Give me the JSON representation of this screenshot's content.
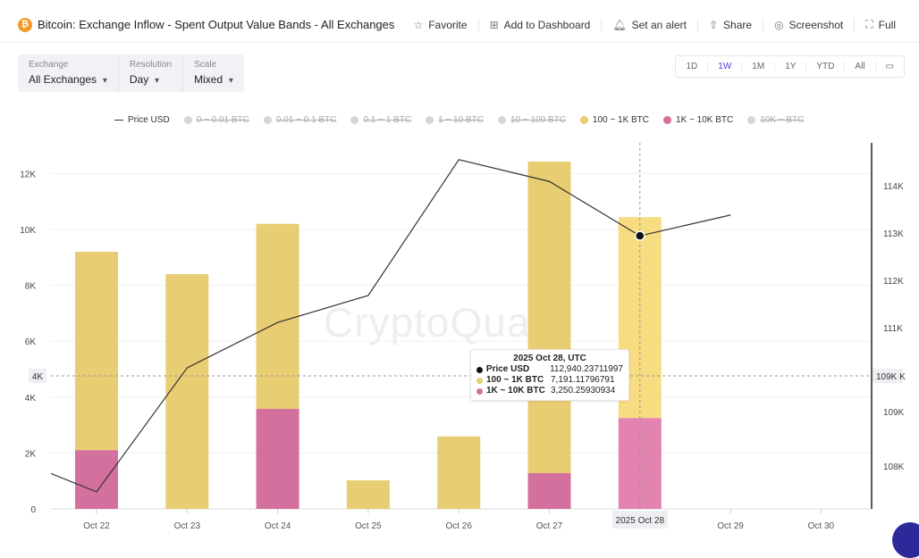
{
  "header": {
    "title": "Bitcoin: Exchange Inflow - Spent Output Value Bands - All Exchanges",
    "actions": [
      {
        "label": "Favorite",
        "icon": "star-icon"
      },
      {
        "label": "Add to Dashboard",
        "icon": "dashboard-add-icon"
      },
      {
        "label": "Set an alert",
        "icon": "bell-icon"
      },
      {
        "label": "Share",
        "icon": "share-icon"
      },
      {
        "label": "Screenshot",
        "icon": "camera-icon"
      },
      {
        "label": "Full",
        "icon": "fullscreen-icon"
      }
    ]
  },
  "controls": [
    {
      "label": "Exchange",
      "value": "All Exchanges"
    },
    {
      "label": "Resolution",
      "value": "Day"
    },
    {
      "label": "Scale",
      "value": "Mixed"
    }
  ],
  "ranges": [
    "1D",
    "1W",
    "1M",
    "1Y",
    "YTD",
    "All"
  ],
  "active_range": "1W",
  "watermark": "CryptoQuant",
  "chart_data": {
    "type": "bar",
    "legend": [
      {
        "name": "Price USD",
        "type": "line",
        "active": true
      },
      {
        "name": "0 ~ 0.01 BTC",
        "active": false
      },
      {
        "name": "0.01 ~ 0.1 BTC",
        "active": false
      },
      {
        "name": "0.1 ~ 1 BTC",
        "active": false
      },
      {
        "name": "1 ~ 10 BTC",
        "active": false
      },
      {
        "name": "10 ~ 100 BTC",
        "active": false
      },
      {
        "name": "100 ~ 1K BTC",
        "active": true,
        "color": "#e8cd72"
      },
      {
        "name": "1K ~ 10K BTC",
        "active": true,
        "color": "#d4709e"
      },
      {
        "name": "10K ~ BTC",
        "active": false
      }
    ],
    "categories": [
      "Oct 22",
      "Oct 23",
      "Oct 24",
      "Oct 25",
      "Oct 26",
      "Oct 27",
      "Oct 28",
      "Oct 29",
      "Oct 30"
    ],
    "series": [
      {
        "name": "100 ~ 1K BTC",
        "color": "#e8cd72",
        "values": [
          7100,
          8400,
          6620,
          1020,
          2590,
          11150,
          7191.11796791,
          null,
          null
        ]
      },
      {
        "name": "1K ~ 10K BTC",
        "color": "#d4709e",
        "values": [
          2100,
          0,
          3580,
          0,
          0,
          1280,
          3250.25930934,
          null,
          null
        ]
      }
    ],
    "price": {
      "name": "Price USD",
      "color": "#333333",
      "x": [
        "Oct 21",
        "Oct 22",
        "Oct 23",
        "Oct 24",
        "Oct 25",
        "Oct 26",
        "Oct 27",
        "Oct 28",
        "Oct 29"
      ],
      "values": [
        108300,
        107530,
        110150,
        111110,
        111680,
        114550,
        114090,
        112940.23711997,
        113380
      ]
    },
    "y_left": {
      "range": [
        0,
        13000
      ],
      "ticks": [
        "0",
        "2K",
        "4K",
        "6K",
        "8K",
        "10K",
        "12K"
      ]
    },
    "y_right": {
      "ticks": [
        "108K",
        "109K",
        "111K",
        "112K",
        "113K",
        "114K"
      ]
    },
    "crosshair": {
      "x_label": "2025 Oct 28",
      "left_label": "4K",
      "right_label": "109K K"
    },
    "tooltip": {
      "title": "2025 Oct 28, UTC",
      "rows": [
        {
          "name": "Price USD",
          "value": "112,940.23711997",
          "color": "#111111"
        },
        {
          "name": "100 ~ 1K BTC",
          "value": "7,191.11796791",
          "color": "#e8cd72"
        },
        {
          "name": "1K ~ 10K BTC",
          "value": "3,250.25930934",
          "color": "#d4709e"
        }
      ]
    }
  }
}
